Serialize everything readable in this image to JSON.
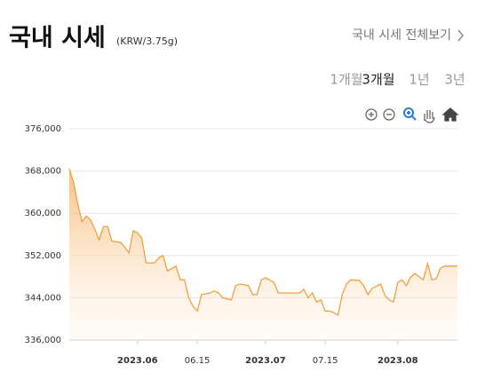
{
  "header": {
    "title": "국내 시세",
    "unit": "(KRW/3.75g)",
    "link": "국내 시세 전체보기"
  },
  "tabs": {
    "items": [
      "1개월",
      "3개월",
      "1년",
      "3년"
    ],
    "active": 1
  },
  "chart_data": {
    "type": "area",
    "color": "#f0a040",
    "x": [
      0,
      1,
      2,
      3,
      4,
      5,
      6,
      7,
      8,
      9,
      10,
      12,
      13,
      14,
      15,
      16,
      17,
      18,
      20,
      21,
      22,
      23,
      25,
      26,
      27,
      28,
      29,
      30,
      31,
      33,
      34,
      35,
      36,
      38,
      39,
      40,
      42,
      43,
      44,
      45,
      46,
      48,
      49,
      50,
      53,
      54,
      55,
      56,
      57,
      58,
      59,
      60,
      61,
      62,
      63,
      64,
      65,
      66,
      68,
      69,
      70,
      71,
      73,
      74,
      75,
      76,
      77,
      78,
      79,
      80,
      81,
      83,
      84,
      85,
      86,
      87,
      88,
      90,
      91
    ],
    "values": [
      368400,
      365900,
      361700,
      358400,
      359500,
      358700,
      357000,
      355000,
      357500,
      357500,
      354700,
      354500,
      353600,
      352500,
      356700,
      356300,
      355300,
      350600,
      350600,
      351600,
      352000,
      349100,
      350000,
      347400,
      347400,
      344000,
      342400,
      341500,
      344600,
      344900,
      345300,
      344900,
      344000,
      343600,
      346300,
      346600,
      346300,
      344600,
      344600,
      347400,
      347800,
      346900,
      344900,
      344900,
      344900,
      344900,
      345600,
      344000,
      344900,
      343200,
      343600,
      341500,
      341500,
      341200,
      340700,
      344600,
      346600,
      347400,
      347300,
      346300,
      344600,
      345800,
      346600,
      344400,
      343600,
      343200,
      346900,
      347400,
      346300,
      347900,
      348600,
      347400,
      350500,
      347400,
      347600,
      349600,
      350000,
      350000,
      350000
    ],
    "xlim": [
      0,
      91
    ],
    "xticks": [
      {
        "value": 16,
        "label": "2023.06"
      },
      {
        "value": 30,
        "label": "06.15"
      },
      {
        "value": 46,
        "label": "2023.07"
      },
      {
        "value": 60,
        "label": "07.15"
      },
      {
        "value": 77,
        "label": "2023.08"
      }
    ],
    "ylim": [
      336000,
      376000
    ],
    "yticks": [
      {
        "value": 336000,
        "label": "336,000"
      },
      {
        "value": 344000,
        "label": "344,000"
      },
      {
        "value": 352000,
        "label": "352,000"
      },
      {
        "value": 360000,
        "label": "360,000"
      },
      {
        "value": 368000,
        "label": "368,000"
      },
      {
        "value": 376000,
        "label": "376,000"
      }
    ],
    "grid": true
  }
}
